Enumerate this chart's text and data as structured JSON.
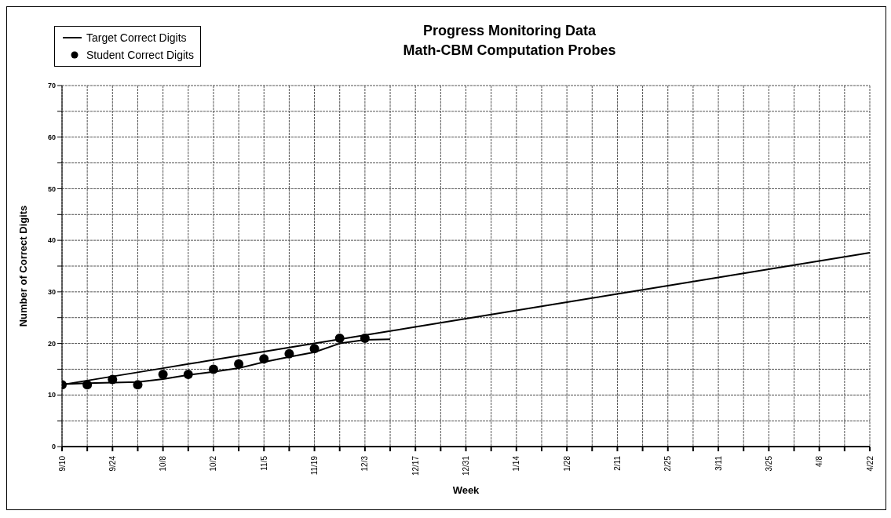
{
  "chart_data": {
    "type": "line",
    "title": "Progress Monitoring Data",
    "subtitle": "Math-CBM Computation Probes",
    "xlabel": "Week",
    "ylabel": "Number of Correct Digits",
    "categories": [
      "9/10",
      null,
      "9/24",
      null,
      "10/8",
      null,
      "10/2",
      null,
      "11/5",
      null,
      "11/19",
      null,
      "12/3",
      null,
      "12/17",
      null,
      "12/31",
      null,
      "1/14",
      null,
      "1/28",
      null,
      "2/11",
      null,
      "2/25",
      null,
      "3/11",
      null,
      "3/25",
      null,
      "4/8",
      null,
      "4/22"
    ],
    "series": [
      {
        "name": "Target Correct Digits",
        "color": "#000000",
        "marker": "none",
        "values": [
          12,
          12.8,
          13.6,
          14.4,
          15.2,
          16,
          16.8,
          17.6,
          18.4,
          19.2,
          20,
          20.8,
          21.6,
          22.4,
          23.2,
          24,
          24.8,
          25.6,
          26.4,
          27.2,
          28,
          28.8,
          29.6,
          30.4,
          31.2,
          32,
          32.8,
          33.6,
          34.4,
          35.2,
          36,
          36.8,
          37.6
        ]
      },
      {
        "name": "Student Correct Digits",
        "type": "scatter",
        "color": "#000000",
        "marker": "circle",
        "values": [
          12,
          12,
          13,
          12,
          14,
          14,
          15,
          16,
          17,
          18,
          19,
          21,
          21,
          null,
          null,
          null,
          null,
          null,
          null,
          null,
          null,
          null,
          null,
          null,
          null,
          null,
          null,
          null,
          null,
          null,
          null,
          null,
          null
        ]
      },
      {
        "color": "#000000",
        "marker": "none",
        "values": [
          12.1,
          12.3,
          12.4,
          12.5,
          13.1,
          13.9,
          14.5,
          15.2,
          16.4,
          17.4,
          18.3,
          20,
          20.7,
          20.8,
          null,
          null,
          null,
          null,
          null,
          null,
          null,
          null,
          null,
          null,
          null,
          null,
          null,
          null,
          null,
          null,
          null,
          null,
          null
        ]
      }
    ],
    "ylim": [
      0,
      70
    ],
    "yticks": [
      0,
      {
        "value": 5,
        "label": null
      },
      10,
      {
        "value": 15,
        "label": null
      },
      20,
      {
        "value": 25,
        "label": null
      },
      30,
      {
        "value": 35,
        "label": null
      },
      40,
      {
        "value": 45,
        "label": null
      },
      50,
      {
        "value": 55,
        "label": null
      },
      60,
      {
        "value": 65,
        "label": null
      },
      70
    ],
    "grid": true,
    "legend": "top left"
  }
}
